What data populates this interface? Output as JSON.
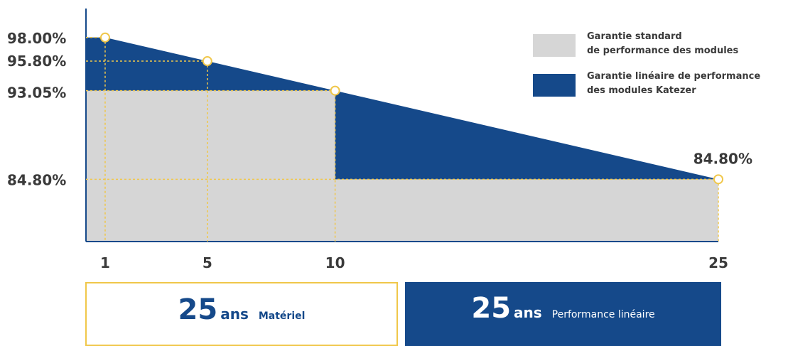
{
  "colors": {
    "navy": "#15498a",
    "grey": "#d6d6d6",
    "gold": "#f0c74a",
    "text": "#3a3a3a"
  },
  "chart_data": {
    "type": "area",
    "x": [
      1,
      5,
      10,
      25
    ],
    "xlim": [
      0.25,
      25
    ],
    "ylim": [
      79.0,
      100.3
    ],
    "x_tick_labels": [
      "1",
      "5",
      "10",
      "25"
    ],
    "series": [
      {
        "name": "Garantie linéaire de performance des modules Katezer",
        "color": "#15498a",
        "points": [
          [
            0.25,
            98.0
          ],
          [
            1,
            98.0
          ],
          [
            5,
            95.8
          ],
          [
            10,
            93.05
          ],
          [
            25,
            84.8
          ]
        ]
      },
      {
        "name": "Garantie standard de performance des modules",
        "color": "#d6d6d6",
        "points": [
          [
            0.25,
            93.05
          ],
          [
            10,
            93.05
          ],
          [
            10,
            84.8
          ],
          [
            25,
            84.8
          ]
        ]
      }
    ],
    "markers": [
      {
        "x": 1,
        "y": 98.0
      },
      {
        "x": 5,
        "y": 95.8
      },
      {
        "x": 10,
        "y": 93.05
      },
      {
        "x": 25,
        "y": 84.8
      }
    ],
    "y_labels": [
      {
        "value": 98.0,
        "text": "98.00%"
      },
      {
        "value": 95.8,
        "text": "95.80%"
      },
      {
        "value": 93.05,
        "text": "93.05%"
      },
      {
        "value": 84.8,
        "text": "84.80%"
      }
    ],
    "end_label": {
      "x": 25,
      "y": 84.8,
      "text": "84.80%"
    },
    "legend_position": "top-right",
    "grid": false
  },
  "legend": [
    {
      "label": "Garantie standard\nde performance des modules",
      "color": "#d6d6d6"
    },
    {
      "label": "Garantie linéaire de performance\ndes modules Katezer",
      "color": "#15498a"
    }
  ],
  "cards": {
    "left": {
      "number": "25",
      "unit": "ans",
      "text": "Matériel"
    },
    "right": {
      "number": "25",
      "unit": "ans",
      "text": "Performance linéaire"
    }
  }
}
